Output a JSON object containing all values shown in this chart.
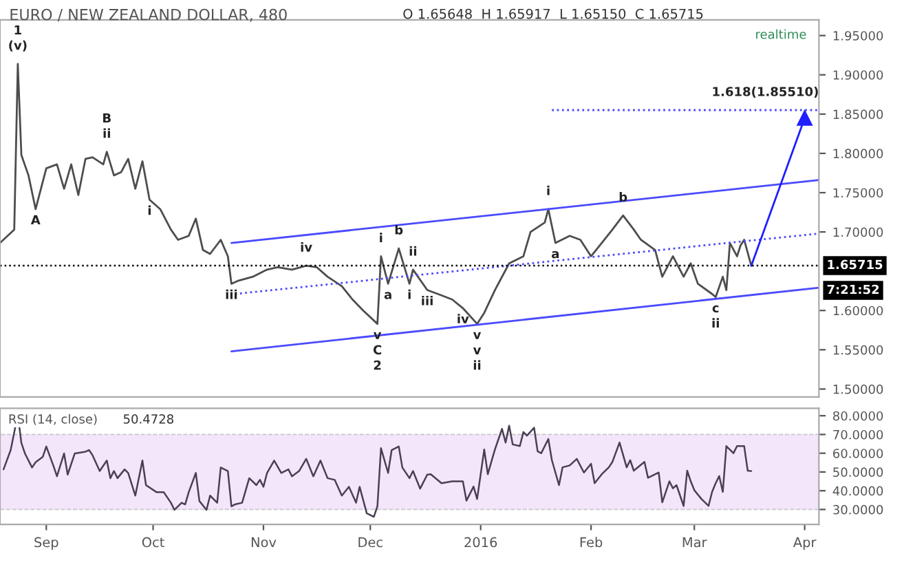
{
  "chart_data": [
    {
      "type": "line",
      "title": "EURO / NEW ZEALAND DOLLAR, 480",
      "subtitle": "O 1.65648  H 1.65917  L 1.65150  C 1.65715",
      "xlim": [
        "2015-08-19",
        "2016-04-05"
      ],
      "ylim": [
        1.49,
        1.97
      ],
      "yticks": [
        {
          "value": 1.5,
          "label": "1.50000"
        },
        {
          "value": 1.55,
          "label": "1.55000"
        },
        {
          "value": 1.6,
          "label": "1.60000"
        },
        {
          "value": 1.7,
          "label": "1.70000"
        },
        {
          "value": 1.75,
          "label": "1.75000"
        },
        {
          "value": 1.8,
          "label": "1.80000"
        },
        {
          "value": 1.85,
          "label": "1.85000"
        },
        {
          "value": 1.9,
          "label": "1.90000"
        },
        {
          "value": 1.95,
          "label": "1.95000"
        }
      ],
      "tick_labels": "y",
      "grid": false,
      "legend": false,
      "series": [
        {
          "color": "#4d4d4d",
          "x": [
            "2015-08-19",
            "2015-08-23",
            "2015-08-24",
            "2015-08-25",
            "2015-08-27",
            "2015-08-29",
            "2015-09-01",
            "2015-09-04",
            "2015-09-06",
            "2015-09-08",
            "2015-09-10",
            "2015-09-12",
            "2015-09-14",
            "2015-09-17",
            "2015-09-18",
            "2015-09-20",
            "2015-09-22",
            "2015-09-24",
            "2015-09-26",
            "2015-09-28",
            "2015-09-30",
            "2015-10-03",
            "2015-10-06",
            "2015-10-08",
            "2015-10-11",
            "2015-10-13",
            "2015-10-15",
            "2015-10-17",
            "2015-10-20",
            "2015-10-22",
            "2015-10-23",
            "2015-10-25",
            "2015-10-29",
            "2015-11-02",
            "2015-11-05",
            "2015-11-09",
            "2015-11-13",
            "2015-11-16",
            "2015-11-19",
            "2015-11-23",
            "2015-11-26",
            "2015-11-29",
            "2015-12-03",
            "2015-12-04",
            "2015-12-06",
            "2015-12-09",
            "2015-12-12",
            "2015-12-13",
            "2015-12-17",
            "2015-12-20",
            "2015-12-24",
            "2015-12-27",
            "2015-12-31",
            "2016-01-02",
            "2016-01-05",
            "2016-01-09",
            "2016-01-13",
            "2016-01-15",
            "2016-01-19",
            "2016-01-20",
            "2016-01-22",
            "2016-01-26",
            "2016-01-29",
            "2016-02-01",
            "2016-02-04",
            "2016-02-07",
            "2016-02-10",
            "2016-02-13",
            "2016-02-15",
            "2016-02-19",
            "2016-02-21",
            "2016-02-24",
            "2016-02-27",
            "2016-02-29",
            "2016-03-02",
            "2016-03-06",
            "2016-03-07",
            "2016-03-09",
            "2016-03-10",
            "2016-03-11",
            "2016-03-13",
            "2016-03-14",
            "2016-03-15",
            "2016-03-17"
          ],
          "values": [
            1.686,
            1.703,
            1.914,
            1.798,
            1.772,
            1.729,
            1.781,
            1.786,
            1.755,
            1.786,
            1.747,
            1.793,
            1.795,
            1.786,
            1.802,
            1.772,
            1.776,
            1.793,
            1.755,
            1.79,
            1.741,
            1.729,
            1.703,
            1.69,
            1.695,
            1.717,
            1.677,
            1.672,
            1.69,
            1.669,
            1.634,
            1.638,
            1.643,
            1.652,
            1.655,
            1.652,
            1.657,
            1.655,
            1.643,
            1.631,
            1.614,
            1.6,
            1.583,
            1.669,
            1.634,
            1.679,
            1.634,
            1.652,
            1.626,
            1.621,
            1.614,
            1.603,
            1.583,
            1.597,
            1.626,
            1.66,
            1.669,
            1.7,
            1.712,
            1.729,
            1.686,
            1.695,
            1.69,
            1.669,
            1.686,
            1.703,
            1.721,
            1.703,
            1.69,
            1.677,
            1.643,
            1.669,
            1.643,
            1.66,
            1.634,
            1.621,
            1.617,
            1.643,
            1.626,
            1.686,
            1.669,
            1.683,
            1.69,
            1.657
          ]
        },
        {
          "color": "#4a4aff",
          "x": [
            "2015-10-23",
            "2016-04-05"
          ],
          "values": [
            1.686,
            1.766
          ]
        },
        {
          "color": "#4a4aff",
          "x": [
            "2015-10-23",
            "2016-04-05"
          ],
          "values": [
            1.548,
            1.629
          ]
        },
        {
          "color": "#4a4aff",
          "line_style": "dotted",
          "x": [
            "2015-10-24",
            "2016-04-05"
          ],
          "values": [
            1.621,
            1.698
          ]
        },
        {
          "color": "#4a4aff",
          "line_style": "dotted",
          "x": [
            "2016-01-21",
            "2016-04-05"
          ],
          "values": [
            1.8551,
            1.8551
          ]
        },
        {
          "color": "#1f1fff",
          "marker": "triangle",
          "x": [
            "2016-03-17",
            "2016-04-01"
          ],
          "values": [
            1.657,
            1.845
          ]
        }
      ],
      "ref_lines": [
        {
          "axis": "y",
          "value": 1.65715,
          "label": "1.65715",
          "color": "#000000",
          "line_style": "dotted"
        }
      ],
      "annotations": [
        "realtime",
        "7:21:52",
        {
          "text": "1.618(1.85510)",
          "x": "2016-04-05",
          "y": 1.8551
        },
        {
          "text": "1",
          "x": "2015-08-24",
          "y": 1.914
        },
        {
          "text": "(v)",
          "x": "2015-08-24",
          "y": 1.914
        },
        {
          "text": "A",
          "x": "2015-08-29",
          "y": 1.729
        },
        {
          "text": "B",
          "x": "2015-09-18",
          "y": 1.802
        },
        {
          "text": "ii",
          "x": "2015-09-18",
          "y": 1.802
        },
        {
          "text": "i",
          "x": "2015-09-30",
          "y": 1.741
        },
        {
          "text": "iii",
          "x": "2015-10-23",
          "y": 1.634
        },
        {
          "text": "iv",
          "x": "2015-11-13",
          "y": 1.657
        },
        {
          "text": "i",
          "x": "2015-12-04",
          "y": 1.669
        },
        {
          "text": "b",
          "x": "2015-12-09",
          "y": 1.679
        },
        {
          "text": "ii",
          "x": "2015-12-13",
          "y": 1.652
        },
        {
          "text": "a",
          "x": "2015-12-06",
          "y": 1.634
        },
        {
          "text": "i",
          "x": "2015-12-12",
          "y": 1.634
        },
        {
          "text": "v",
          "x": "2015-12-03",
          "y": 1.583
        },
        {
          "text": "C",
          "x": "2015-12-03",
          "y": 1.583
        },
        {
          "text": "2",
          "x": "2015-12-03",
          "y": 1.583
        },
        {
          "text": "iii",
          "x": "2015-12-17",
          "y": 1.626
        },
        {
          "text": "iv",
          "x": "2015-12-27",
          "y": 1.603
        },
        {
          "text": "v",
          "x": "2015-12-31",
          "y": 1.583
        },
        {
          "text": "v",
          "x": "2015-12-31",
          "y": 1.583
        },
        {
          "text": "ii",
          "x": "2015-12-31",
          "y": 1.583
        },
        {
          "text": "i",
          "x": "2016-01-20",
          "y": 1.729
        },
        {
          "text": "a",
          "x": "2016-01-22",
          "y": 1.686
        },
        {
          "text": "b",
          "x": "2016-02-10",
          "y": 1.721
        },
        {
          "text": "c",
          "x": "2016-03-07",
          "y": 1.617
        },
        {
          "text": "ii",
          "x": "2016-03-07",
          "y": 1.617
        }
      ]
    },
    {
      "type": "line",
      "title": "RSI (14, close)",
      "subtitle": "50.4728",
      "xlim": [
        "2015-08-19",
        "2016-04-05"
      ],
      "xticks": [
        {
          "value": "2015-09-01",
          "label": "Sep"
        },
        {
          "value": "2015-10-01",
          "label": "Oct"
        },
        {
          "value": "2015-11-01",
          "label": "Nov"
        },
        {
          "value": "2015-12-01",
          "label": "Dec"
        },
        {
          "value": "2016-01-01",
          "label": "2016"
        },
        {
          "value": "2016-02-01",
          "label": "Feb"
        },
        {
          "value": "2016-03-01",
          "label": "Mar"
        },
        {
          "value": "2016-04-01",
          "label": "Apr"
        }
      ],
      "ylim": [
        22,
        84
      ],
      "yticks": [
        {
          "value": 30,
          "label": "30.0000"
        },
        {
          "value": 40,
          "label": "40.0000"
        },
        {
          "value": 50,
          "label": "50.0000"
        },
        {
          "value": 60,
          "label": "60.0000"
        },
        {
          "value": 70,
          "label": "70.0000"
        },
        {
          "value": 80,
          "label": "80.0000"
        }
      ],
      "grid": false,
      "legend": false,
      "bands": [
        {
          "axis": "y",
          "from": 30,
          "to": 70,
          "color": "#f3e6fb"
        }
      ],
      "series": [
        {
          "color": "#4a3f55",
          "x": [
            "2015-08-20",
            "2015-08-22",
            "2015-08-24",
            "2015-08-25",
            "2015-08-26",
            "2015-08-28",
            "2015-08-29",
            "2015-08-31",
            "2015-09-01",
            "2015-09-03",
            "2015-09-04",
            "2015-09-06",
            "2015-09-07",
            "2015-09-09",
            "2015-09-12",
            "2015-09-13",
            "2015-09-14",
            "2015-09-16",
            "2015-09-18",
            "2015-09-19",
            "2015-09-20",
            "2015-09-21",
            "2015-09-23",
            "2015-09-24",
            "2015-09-26",
            "2015-09-28",
            "2015-09-29",
            "2015-10-02",
            "2015-10-04",
            "2015-10-06",
            "2015-10-07",
            "2015-10-09",
            "2015-10-10",
            "2015-10-11",
            "2015-10-13",
            "2015-10-14",
            "2015-10-16",
            "2015-10-17",
            "2015-10-19",
            "2015-10-20",
            "2015-10-22",
            "2015-10-23",
            "2015-10-24",
            "2015-10-26",
            "2015-10-28",
            "2015-10-30",
            "2015-10-31",
            "2015-11-01",
            "2015-11-02",
            "2015-11-04",
            "2015-11-06",
            "2015-11-08",
            "2015-11-09",
            "2015-11-11",
            "2015-11-13",
            "2015-11-15",
            "2015-11-17",
            "2015-11-19",
            "2015-11-21",
            "2015-11-23",
            "2015-11-25",
            "2015-11-27",
            "2015-11-28",
            "2015-11-30",
            "2015-12-02",
            "2015-12-03",
            "2015-12-04",
            "2015-12-06",
            "2015-12-07",
            "2015-12-09",
            "2015-12-10",
            "2015-12-12",
            "2015-12-13",
            "2015-12-15",
            "2015-12-17",
            "2015-12-18",
            "2015-12-21",
            "2015-12-24",
            "2015-12-27",
            "2015-12-28",
            "2015-12-30",
            "2015-12-31",
            "2016-01-02",
            "2016-01-03",
            "2016-01-05",
            "2016-01-07",
            "2016-01-08",
            "2016-01-09",
            "2016-01-10",
            "2016-01-12",
            "2016-01-13",
            "2016-01-14",
            "2016-01-16",
            "2016-01-17",
            "2016-01-18",
            "2016-01-20",
            "2016-01-21",
            "2016-01-23",
            "2016-01-24",
            "2016-01-26",
            "2016-01-28",
            "2016-01-30",
            "2016-02-01",
            "2016-02-02",
            "2016-02-04",
            "2016-02-06",
            "2016-02-07",
            "2016-02-09",
            "2016-02-11",
            "2016-02-12",
            "2016-02-13",
            "2016-02-16",
            "2016-02-17",
            "2016-02-20",
            "2016-02-21",
            "2016-02-23",
            "2016-02-24",
            "2016-02-25",
            "2016-02-27",
            "2016-02-28",
            "2016-02-29",
            "2016-03-01",
            "2016-03-03",
            "2016-03-05",
            "2016-03-06",
            "2016-03-07",
            "2016-03-08",
            "2016-03-09",
            "2016-03-10",
            "2016-03-12",
            "2016-03-13",
            "2016-03-15",
            "2016-03-16",
            "2016-03-17"
          ],
          "values": [
            51.4,
            61.7,
            80.5,
            65.5,
            59.9,
            52.4,
            55.2,
            58,
            63.6,
            53.3,
            47.7,
            59.9,
            48.6,
            59.9,
            60.8,
            61.7,
            58.9,
            50.5,
            56.1,
            46.7,
            50.5,
            46.7,
            51.4,
            49.5,
            37.4,
            56.1,
            43,
            39.2,
            39.2,
            33.6,
            29.8,
            33.6,
            32.7,
            39.2,
            49.5,
            34.5,
            29.8,
            37.4,
            33.6,
            52.4,
            50.5,
            31.7,
            32.7,
            33.6,
            46.7,
            43,
            45.8,
            42.1,
            49.5,
            56.1,
            49.5,
            51.4,
            47.7,
            50.5,
            57,
            47.7,
            56.1,
            46.7,
            45.8,
            37.4,
            42.1,
            33.6,
            42.1,
            28,
            26.1,
            31.7,
            62.7,
            49.5,
            61.7,
            63.6,
            52.4,
            46.7,
            50.5,
            41.1,
            48.6,
            48.8,
            44,
            45,
            45,
            34.7,
            42.2,
            35.6,
            62,
            48.8,
            62,
            73,
            65.7,
            74.7,
            64.7,
            63.8,
            71.3,
            69.4,
            73.6,
            61,
            60,
            67.6,
            56.3,
            43,
            52.5,
            53.5,
            57,
            49.7,
            54.4,
            44,
            48.8,
            52.5,
            55.4,
            65.7,
            52.5,
            56.3,
            50.7,
            55.4,
            46.9,
            49.7,
            33.8,
            45,
            41.3,
            43,
            31.9,
            50.7,
            45,
            40.3,
            35.6,
            31.9,
            39.4,
            44,
            47.8,
            39.4,
            63.8,
            60,
            63.8,
            63.8,
            50.7,
            50.47
          ]
        }
      ]
    }
  ]
}
